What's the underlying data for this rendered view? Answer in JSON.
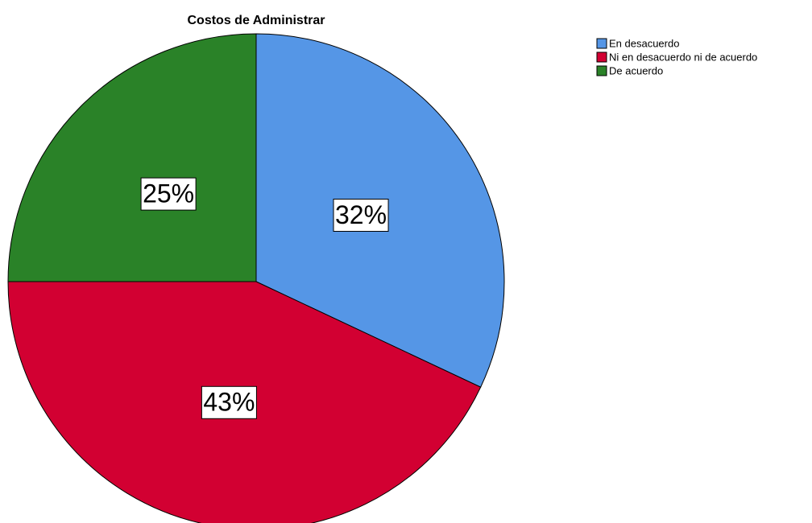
{
  "chart_data": {
    "type": "pie",
    "title": "Costos de Administrar",
    "categories": [
      "En desacuerdo",
      "Ni en desacuerdo ni de acuerdo",
      "De acuerdo"
    ],
    "values": [
      32,
      43,
      25
    ],
    "value_labels": [
      "32%",
      "43%",
      "25%"
    ],
    "colors": [
      "#5596e6",
      "#d20032",
      "#2a8228"
    ],
    "legend": "top-right"
  }
}
